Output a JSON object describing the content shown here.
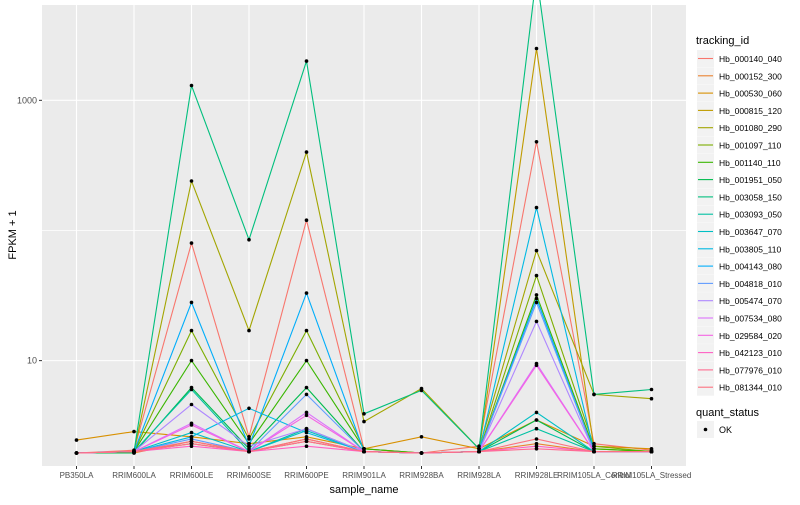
{
  "chart_data": {
    "type": "line",
    "xlabel": "sample_name",
    "ylabel": "FPKM + 1",
    "y_scale": "log10",
    "ylim": [
      1.55,
      5400
    ],
    "y_ticks": [
      10,
      1000
    ],
    "y_tick_labels": [
      "10",
      "1000"
    ],
    "grid": true,
    "categories": [
      "PB350LA",
      "RRIM600LA",
      "RRIM600LE",
      "RRIM600SE",
      "RRIM600PE",
      "RRIM901LA",
      "RRIM928BA",
      "RRIM928LA",
      "RRIM928LE",
      "RRIM105LA_Control",
      "RRIM105LA_Stressed"
    ],
    "legend": {
      "title": "tracking_id",
      "position": "right"
    },
    "point_legend": {
      "title": "quant_status",
      "label": "OK"
    },
    "series": [
      {
        "name": "Hb_000140_040",
        "color": "#F8766D",
        "values": [
          1.95,
          2.05,
          80,
          2.6,
          120,
          2.1,
          1.95,
          2.2,
          480,
          2.3,
          2.05
        ]
      },
      {
        "name": "Hb_000152_300",
        "color": "#EA8331",
        "values": [
          1.95,
          1.95,
          2.4,
          2.0,
          2.5,
          2.0,
          1.95,
          2.0,
          2.3,
          2.0,
          2.0
        ]
      },
      {
        "name": "Hb_000530_060",
        "color": "#D89000",
        "values": [
          2.45,
          2.85,
          2.6,
          2.3,
          2.6,
          2.1,
          2.6,
          2.1,
          3.5,
          2.2,
          2.1
        ]
      },
      {
        "name": "Hb_000815_120",
        "color": "#C09B00",
        "values": [
          1.95,
          2.0,
          2.3,
          2.0,
          2.4,
          2.0,
          1.95,
          2.0,
          2500,
          2.1,
          2.0
        ]
      },
      {
        "name": "Hb_001080_290",
        "color": "#A3A500",
        "values": [
          1.95,
          2.0,
          240,
          17,
          400,
          3.4,
          6.1,
          2.1,
          70,
          5.5,
          5.1
        ]
      },
      {
        "name": "Hb_001097_110",
        "color": "#7CAE00",
        "values": [
          1.95,
          2.0,
          17,
          2.5,
          17,
          2.1,
          1.95,
          2.0,
          45,
          2.2,
          2.0
        ]
      },
      {
        "name": "Hb_001140_110",
        "color": "#39B600",
        "values": [
          1.95,
          2.0,
          10,
          2.3,
          10,
          2.1,
          1.95,
          2.0,
          32,
          2.1,
          2.0
        ]
      },
      {
        "name": "Hb_001951_050",
        "color": "#00BB4E",
        "values": [
          1.95,
          1.95,
          6.2,
          2.1,
          6.2,
          2.0,
          1.95,
          2.0,
          3.5,
          2.0,
          2.0
        ]
      },
      {
        "name": "Hb_003058_150",
        "color": "#00BF7D",
        "values": [
          1.95,
          2.0,
          1300,
          85,
          2000,
          3.9,
          5.9,
          2.1,
          9200,
          5.5,
          6.0
        ]
      },
      {
        "name": "Hb_003093_050",
        "color": "#00C1A3",
        "values": [
          1.95,
          2.0,
          6.0,
          2.0,
          3.0,
          2.0,
          1.95,
          2.0,
          3.0,
          2.0,
          2.0
        ]
      },
      {
        "name": "Hb_003647_070",
        "color": "#00BFC4",
        "values": [
          1.95,
          2.0,
          2.8,
          2.0,
          2.9,
          2.0,
          1.95,
          2.0,
          4.0,
          2.0,
          2.0
        ]
      },
      {
        "name": "Hb_003805_110",
        "color": "#00B9E3",
        "values": [
          1.95,
          2.0,
          2.6,
          4.3,
          2.8,
          2.0,
          1.95,
          2.0,
          150,
          2.0,
          2.0
        ]
      },
      {
        "name": "Hb_004143_080",
        "color": "#00ADFA",
        "values": [
          1.95,
          2.0,
          28,
          2.2,
          33,
          2.0,
          1.95,
          2.0,
          30,
          2.0,
          2.0
        ]
      },
      {
        "name": "Hb_004818_010",
        "color": "#619CFF",
        "values": [
          1.95,
          2.0,
          2.5,
          2.0,
          5.5,
          2.0,
          1.95,
          2.0,
          28,
          2.0,
          2.0
        ]
      },
      {
        "name": "Hb_005474_070",
        "color": "#AE87FF",
        "values": [
          1.95,
          2.0,
          4.6,
          2.2,
          3.0,
          2.0,
          1.95,
          2.0,
          20,
          2.0,
          2.0
        ]
      },
      {
        "name": "Hb_007534_080",
        "color": "#DB72FB",
        "values": [
          1.95,
          2.0,
          3.3,
          2.0,
          4.0,
          2.0,
          1.95,
          2.0,
          9.5,
          2.0,
          2.0
        ]
      },
      {
        "name": "Hb_029584_020",
        "color": "#F564E3",
        "values": [
          1.95,
          2.0,
          3.2,
          2.0,
          3.8,
          2.0,
          1.95,
          2.0,
          9.2,
          2.0,
          2.0
        ]
      },
      {
        "name": "Hb_042123_010",
        "color": "#FF61C3",
        "values": [
          1.95,
          2.0,
          2.2,
          2.0,
          2.2,
          2.0,
          1.95,
          2.0,
          2.2,
          2.0,
          2.0
        ]
      },
      {
        "name": "Hb_077976_010",
        "color": "#FF6C91",
        "values": [
          1.95,
          2.0,
          2.3,
          2.0,
          2.4,
          2.0,
          1.95,
          2.0,
          2.1,
          2.0,
          2.0
        ]
      },
      {
        "name": "Hb_081344_010",
        "color": "#FC717F",
        "values": [
          1.95,
          2.0,
          2.4,
          2.0,
          2.5,
          2.0,
          1.95,
          2.0,
          2.5,
          2.0,
          2.0
        ]
      }
    ]
  }
}
